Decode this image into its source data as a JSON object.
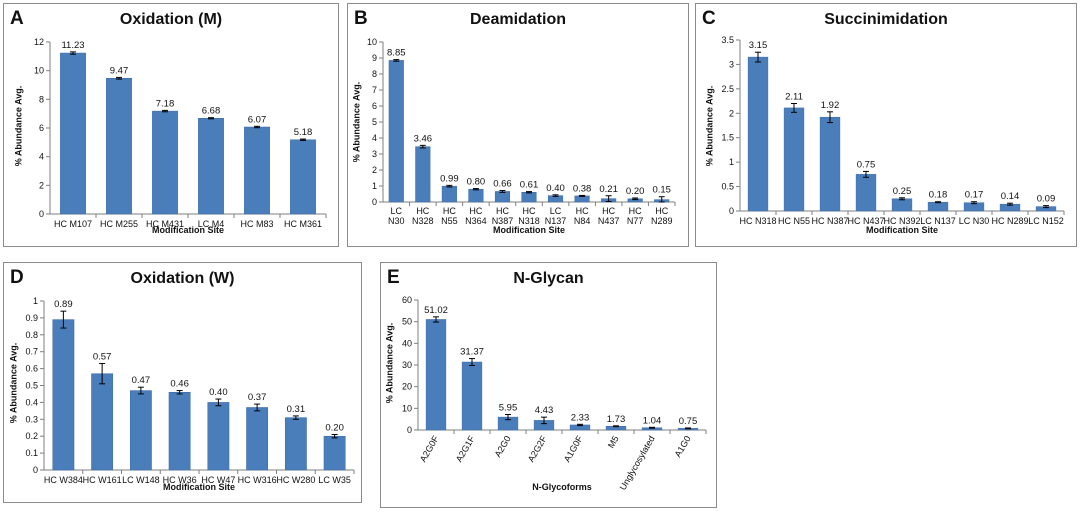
{
  "colors": {
    "bar": "#4a7ebb",
    "bar_edge": "#3a6aa5",
    "axis": "#7f7f7f",
    "text": "#111111"
  },
  "panels": [
    {
      "label": "A",
      "title": "Oxidation (M)",
      "ylabel": "% Abundance Avg.",
      "xlabel": "Modification Site"
    },
    {
      "label": "B",
      "title": "Deamidation",
      "ylabel": "% Abundance Avg.",
      "xlabel": "Modification Site"
    },
    {
      "label": "C",
      "title": "Succinimidation",
      "ylabel": "% Abundance Avg.",
      "xlabel": "Modification Site"
    },
    {
      "label": "D",
      "title": "Oxidation (W)",
      "ylabel": "% Abundance Avg.",
      "xlabel": "Modification Site"
    },
    {
      "label": "E",
      "title": "N-Glycan",
      "ylabel": "% Abundance Avg.",
      "xlabel": "N-Glycoforms"
    }
  ],
  "chart_data": [
    {
      "type": "bar",
      "title": "Oxidation (M)",
      "xlabel": "Modification Site",
      "ylabel": "% Abundance Avg.",
      "ylim": [
        0,
        12
      ],
      "yticks": [
        "0",
        "2",
        "4",
        "6",
        "8",
        "10",
        "12"
      ],
      "categories": [
        "HC M107",
        "HC M255",
        "HC M431",
        "LC M4",
        "HC M83",
        "HC M361"
      ],
      "values": [
        11.23,
        9.47,
        7.18,
        6.68,
        6.07,
        5.18
      ],
      "labels": [
        "11.23",
        "9.47",
        "7.18",
        "6.68",
        "6.07",
        "5.18"
      ],
      "errors": [
        0.08,
        0.06,
        0.05,
        0.04,
        0.05,
        0.05
      ]
    },
    {
      "type": "bar",
      "title": "Deamidation",
      "xlabel": "Modification Site",
      "ylabel": "% Abundance Avg.",
      "ylim": [
        0,
        10
      ],
      "yticks": [
        "0",
        "1",
        "2",
        "3",
        "4",
        "5",
        "6",
        "7",
        "8",
        "9",
        "10"
      ],
      "categories": [
        [
          "LC",
          "N30"
        ],
        [
          "HC",
          "N328"
        ],
        [
          "HC",
          "N55"
        ],
        [
          "HC",
          "N364"
        ],
        [
          "HC",
          "N387"
        ],
        [
          "HC",
          "N318"
        ],
        [
          "LC",
          "N137"
        ],
        [
          "HC",
          "N84"
        ],
        [
          "HC",
          "N437"
        ],
        [
          "HC",
          "N77"
        ],
        [
          "HC",
          "N289"
        ]
      ],
      "values": [
        8.85,
        3.46,
        0.99,
        0.8,
        0.66,
        0.61,
        0.4,
        0.38,
        0.21,
        0.2,
        0.15
      ],
      "labels": [
        "8.85",
        "3.46",
        "0.99",
        "0.80",
        "0.66",
        "0.61",
        "0.40",
        "0.38",
        "0.21",
        "0.20",
        "0.15"
      ],
      "errors": [
        0.05,
        0.08,
        0.05,
        0.04,
        0.06,
        0.04,
        0.05,
        0.03,
        0.18,
        0.05,
        0.18
      ]
    },
    {
      "type": "bar",
      "title": "Succinimidation",
      "xlabel": "Modification Site",
      "ylabel": "% Abundance Avg.",
      "ylim": [
        0,
        3.5
      ],
      "yticks": [
        "0",
        "0.5",
        "1",
        "1.5",
        "2",
        "2.5",
        "3",
        "3.5"
      ],
      "categories": [
        "HC N318",
        "HC N55",
        "HC N387",
        "HC N437",
        "HC N392",
        "LC N137",
        "LC N30",
        "HC N289",
        "LC N152"
      ],
      "values": [
        3.15,
        2.11,
        1.92,
        0.75,
        0.25,
        0.18,
        0.17,
        0.14,
        0.09
      ],
      "labels": [
        "3.15",
        "2.11",
        "1.92",
        "0.75",
        "0.25",
        "0.18",
        "0.17",
        "0.14",
        "0.09"
      ],
      "errors": [
        0.1,
        0.09,
        0.11,
        0.06,
        0.02,
        0.01,
        0.02,
        0.02,
        0.02
      ]
    },
    {
      "type": "bar",
      "title": "Oxidation (W)",
      "xlabel": "Modification Site",
      "ylabel": "% Abundance Avg.",
      "ylim": [
        0,
        1
      ],
      "yticks": [
        "0",
        "0.1",
        "0.2",
        "0.3",
        "0.4",
        "0.5",
        "0.6",
        "0.7",
        "0.8",
        "0.9",
        "1"
      ],
      "categories": [
        "HC W384",
        "HC W161",
        "LC W148",
        "HC W36",
        "HC W47",
        "HC W316",
        "HC W280",
        "LC W35"
      ],
      "values": [
        0.89,
        0.57,
        0.47,
        0.46,
        0.4,
        0.37,
        0.31,
        0.2
      ],
      "labels": [
        "0.89",
        "0.57",
        "0.47",
        "0.46",
        "0.40",
        "0.37",
        "0.31",
        "0.20"
      ],
      "errors": [
        0.05,
        0.06,
        0.02,
        0.01,
        0.02,
        0.02,
        0.01,
        0.01
      ]
    },
    {
      "type": "bar",
      "title": "N-Glycan",
      "xlabel": "N-Glycoforms",
      "ylabel": "% Abundance Avg.",
      "ylim": [
        0,
        60
      ],
      "yticks": [
        "0",
        "10",
        "20",
        "30",
        "40",
        "50",
        "60"
      ],
      "categories": [
        "A2G0F",
        "A2G1F",
        "A2G0",
        "A2G2F",
        "A1G0F",
        "M5",
        "Unglycosylated",
        "A1G0"
      ],
      "values": [
        51.02,
        31.37,
        5.95,
        4.43,
        2.33,
        1.73,
        1.04,
        0.75
      ],
      "labels": [
        "51.02",
        "31.37",
        "5.95",
        "4.43",
        "2.33",
        "1.73",
        "1.04",
        "0.75"
      ],
      "errors": [
        1.2,
        1.6,
        1.2,
        1.5,
        0.3,
        0.2,
        0.2,
        0.2
      ]
    }
  ]
}
